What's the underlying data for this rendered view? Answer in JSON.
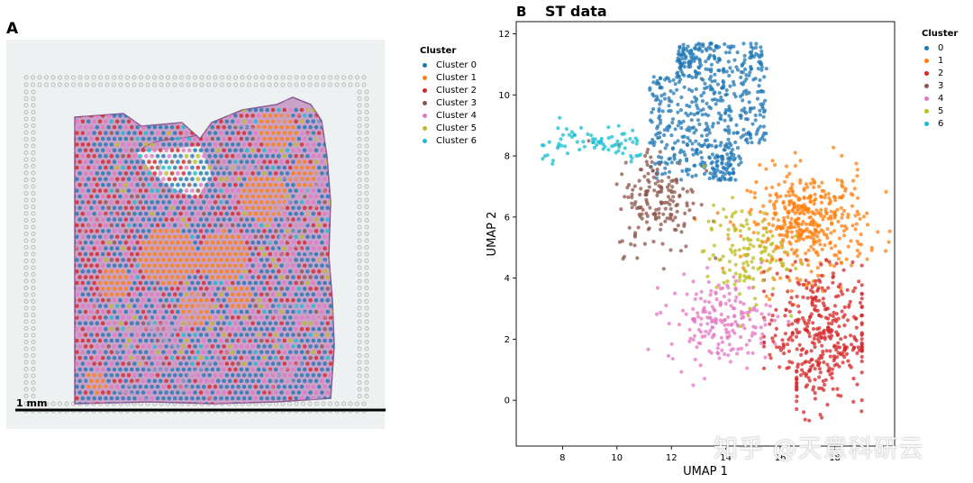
{
  "panel_a": {
    "letter": "A",
    "scale_label": "1 mm",
    "legend": {
      "title": "Cluster",
      "items": [
        {
          "label": "Cluster 0",
          "color": "#1f77b4"
        },
        {
          "label": "Cluster 1",
          "color": "#ff7f0e"
        },
        {
          "label": "Cluster 2",
          "color": "#d62728"
        },
        {
          "label": "Cluster 3",
          "color": "#8c564b"
        },
        {
          "label": "Cluster 4",
          "color": "#e377c2"
        },
        {
          "label": "Cluster 5",
          "color": "#bcbd22"
        },
        {
          "label": "Cluster 6",
          "color": "#17becf"
        }
      ]
    },
    "colors": {
      "tissue": "#c9a3c9",
      "tissue_dark": "#8e5b94",
      "background": "#eef1f1",
      "fiducial": "#b8b8b8"
    }
  },
  "panel_b": {
    "letter": "B",
    "legend": {
      "title": "Cluster",
      "items": [
        {
          "label": "0",
          "color": "#1f77b4"
        },
        {
          "label": "1",
          "color": "#ff7f0e"
        },
        {
          "label": "2",
          "color": "#d62728"
        },
        {
          "label": "3",
          "color": "#8c564b"
        },
        {
          "label": "4",
          "color": "#e377c2"
        },
        {
          "label": "5",
          "color": "#bcbd22"
        },
        {
          "label": "6",
          "color": "#17becf"
        }
      ]
    }
  },
  "chart_data": {
    "type": "scatter",
    "title": "ST data",
    "xlabel": "UMAP 1",
    "ylabel": "UMAP 2",
    "xlim": [
      6.3,
      20.2
    ],
    "ylim": [
      -1.5,
      12.4
    ],
    "xticks": [
      8,
      10,
      12,
      14,
      16,
      18
    ],
    "yticks": [
      0,
      2,
      4,
      6,
      8,
      10,
      12
    ],
    "grid": false,
    "legend_position": "outside-right",
    "series": [
      {
        "name": "0",
        "color": "#1f77b4",
        "center": [
          13.6,
          9.8
        ],
        "spread": [
          1.5,
          1.3
        ],
        "n": 620
      },
      {
        "name": "1",
        "color": "#ff7f0e",
        "center": [
          17.0,
          5.8
        ],
        "spread": [
          1.1,
          0.85
        ],
        "n": 420
      },
      {
        "name": "2",
        "color": "#d62728",
        "center": [
          17.4,
          2.1
        ],
        "spread": [
          0.95,
          1.15
        ],
        "n": 380
      },
      {
        "name": "3",
        "color": "#8c564b",
        "center": [
          11.5,
          6.6
        ],
        "spread": [
          0.75,
          0.9
        ],
        "n": 170
      },
      {
        "name": "4",
        "color": "#e377c2",
        "center": [
          13.8,
          2.6
        ],
        "spread": [
          0.95,
          0.7
        ],
        "n": 190
      },
      {
        "name": "5",
        "color": "#bcbd22",
        "center": [
          14.7,
          4.8
        ],
        "spread": [
          0.75,
          0.8
        ],
        "n": 130
      },
      {
        "name": "6",
        "color": "#17becf",
        "center": [
          8.6,
          8.3
        ],
        "spread": [
          0.95,
          0.3
        ],
        "n": 75
      }
    ]
  },
  "watermark": "知乎 @天意科研云"
}
